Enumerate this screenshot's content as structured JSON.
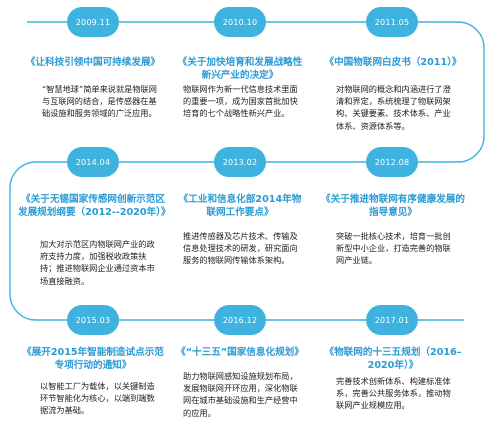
{
  "nodes": [
    {
      "date": "2009.11",
      "title": "《让科技引领中国可持续发展》",
      "body": "“智慧地球”简单来说就是物联网与互联网的结合，是传感器在基础设施和服务领域的广泛应用。"
    },
    {
      "date": "2010.10",
      "title": "《关于加快培育和发展战略性新兴产业的决定》",
      "body": "物联网作为新一代信息技术里面的重要一项，成为国家首批加快培育的七个战略性新兴产业。"
    },
    {
      "date": "2011.05",
      "title": "《中国物联网白皮书（2011）》",
      "body": "对物联网的概念和内涵进行了澄清和界定，系统梳理了物联网架构、关键要素、技术体系、产业体系、资源体系等。"
    },
    {
      "date": "2014.04",
      "title": "《关于无锡国家传感网创新示范区发展规划纲要（2012--2020年）》",
      "body": "加大对示范区内物联网产业的政府支持力度，加强税收政策扶持；推进物联网企业通过资本市场直接融资。"
    },
    {
      "date": "2013.02",
      "title": "《工业和信息化部2014年物联网工作要点》",
      "body": "推进传感器及芯片技术、传输及信息处理技术的研发，研究面向服务的物联网传输体系架构。"
    },
    {
      "date": "2012.08",
      "title": "《关于推进物联网有序健康发展的指导意见》",
      "body": "突破一批核心技术，培育一批创新型中小企业，打造完善的物联网产业链。"
    },
    {
      "date": "2015.03",
      "title": "《展开2015年智能制造试点示范专项行动的通知》",
      "body": "以智能工厂为载体，以关键制造环节智能化为核心，以端到端数据流为基础。"
    },
    {
      "date": "2016.12",
      "title": "《“十三五”国家信息化规划》",
      "body": "助力物联网感知设施规划布局，发展物联网开环应用，深化物联网在城市基础设施和生产经营中的应用。"
    },
    {
      "date": "2017.01",
      "title": "《物联网的十三五规划（2016–2020年）》",
      "body": "完善技术创新体系、构建标准体系，完善公共服务体系，推动物联网产业规模应用。"
    }
  ],
  "colors": {
    "line": "#3eb3e0",
    "badge": "#3eb3e0",
    "title": "#2b9bd3",
    "text": "#222222"
  }
}
